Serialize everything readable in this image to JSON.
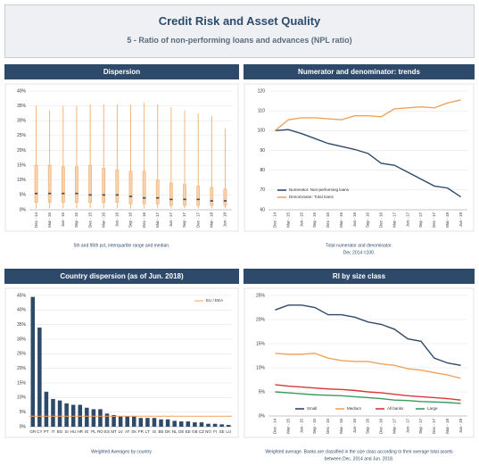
{
  "header": {
    "title": "Credit Risk and Asset Quality",
    "subtitle": "5 - Ratio of non-performing loans and advances (NPL ratio)"
  },
  "chart_data": [
    {
      "type": "box",
      "title": "Dispersion",
      "caption": [
        "5th and 95th pct, interquartile range and median."
      ],
      "categories": [
        "Dec - 14",
        "Mar - 15",
        "Jun - 15",
        "Sep - 15",
        "Dec - 15",
        "Mar - 16",
        "Jun - 16",
        "Sep - 16",
        "Dec - 16",
        "Mar - 17",
        "Jun - 17",
        "Sep - 17",
        "Dec - 17",
        "Mar - 18",
        "Jun - 18"
      ],
      "low": [
        0.5,
        0.5,
        0.5,
        0.5,
        0.5,
        0.5,
        0.5,
        0.5,
        0.5,
        0.5,
        0.5,
        0.5,
        0.5,
        0.5,
        0.5
      ],
      "q1": [
        2.5,
        2.5,
        2.5,
        2.5,
        2.5,
        2.5,
        2.5,
        2,
        2,
        2,
        1.5,
        1.5,
        1.5,
        1.5,
        1.5
      ],
      "median": [
        5.5,
        5.5,
        5.5,
        5.5,
        5,
        5,
        5,
        4.5,
        4,
        4,
        3.5,
        3.5,
        3.5,
        3,
        3
      ],
      "q3": [
        15,
        15,
        14.5,
        14.5,
        15,
        14,
        13.5,
        13,
        13,
        10,
        9,
        8.5,
        8,
        7.5,
        7
      ],
      "high": [
        35,
        33.5,
        35,
        35,
        35.5,
        35.5,
        35.5,
        35.5,
        36,
        35.5,
        34.5,
        33.5,
        32.5,
        31.5,
        27.5
      ],
      "color": "#f0a35a",
      "median_color": "#2e4a6b",
      "ylim": [
        0,
        40
      ],
      "yticks": [
        {
          "value": 0,
          "label": "0%"
        },
        {
          "value": 5,
          "label": "5%"
        },
        {
          "value": 10,
          "label": "10%"
        },
        {
          "value": 15,
          "label": "15%"
        },
        {
          "value": 20,
          "label": "20%"
        },
        {
          "value": 25,
          "label": "25%"
        },
        {
          "value": 30,
          "label": "30%"
        },
        {
          "value": 35,
          "label": "35%"
        },
        {
          "value": 40,
          "label": "40%"
        }
      ],
      "grid": true
    },
    {
      "type": "line",
      "title": "Numerator and denominator: trends",
      "caption": [
        "Total numerator and denominator.",
        "Dec 2014 =100."
      ],
      "categories": [
        "Dec - 14",
        "Mar - 15",
        "Jun - 15",
        "Sep - 15",
        "Dec - 15",
        "Mar - 16",
        "Jun - 16",
        "Sep - 16",
        "Dec - 16",
        "Mar - 17",
        "Jun - 17",
        "Sep - 17",
        "Dec - 17",
        "Mar - 18",
        "Jun - 18"
      ],
      "series": [
        {
          "name": "Numerator: Non-performing loans",
          "color": "#2e4a6b",
          "values": [
            100,
            100.5,
            98.5,
            96,
            93.5,
            92,
            90.5,
            88.5,
            83.5,
            82.5,
            79,
            75.5,
            72,
            71,
            66.5
          ]
        },
        {
          "name": "Denominator: Total loans",
          "color": "#f0a35a",
          "values": [
            100,
            105.5,
            106.5,
            106.5,
            106,
            105.5,
            107.5,
            107.5,
            107,
            111,
            111.5,
            112,
            111.5,
            114,
            115.5
          ]
        }
      ],
      "ylim": [
        60,
        120
      ],
      "yticks": [
        60,
        70,
        80,
        90,
        100,
        110,
        120
      ],
      "grid": true,
      "legend": "lower left"
    },
    {
      "type": "bar",
      "title": "Country dispersion (as of Jun. 2018)",
      "caption": [
        "Weighted Averages by country."
      ],
      "categories": [
        "GR",
        "CY",
        "PT",
        "IT",
        "BG",
        "SI",
        "HU",
        "HR",
        "IE",
        "PL",
        "RO",
        "ES",
        "MT",
        "LV",
        "AT",
        "SK",
        "FR",
        "LT",
        "IS",
        "BE",
        "DK",
        "NL",
        "DE",
        "EE",
        "GB",
        "CZ",
        "NO",
        "FI",
        "SE",
        "LU"
      ],
      "values": [
        44.5,
        34,
        12,
        9.5,
        9,
        8,
        7.5,
        7.5,
        6.5,
        6,
        6,
        4.5,
        4,
        3.5,
        3.5,
        3.5,
        3,
        3,
        3,
        2.5,
        2.5,
        2,
        1.8,
        1.8,
        1.5,
        1.5,
        1,
        1,
        0.8,
        0.6
      ],
      "color": "#2e4a6b",
      "reference_line": {
        "name": "EU / EEA",
        "value": 3.6,
        "color": "#f0a35a"
      },
      "ylim": [
        0,
        45
      ],
      "yticks": [
        {
          "value": 0,
          "label": "0%"
        },
        {
          "value": 5,
          "label": "5%"
        },
        {
          "value": 10,
          "label": "10%"
        },
        {
          "value": 15,
          "label": "15%"
        },
        {
          "value": 20,
          "label": "20%"
        },
        {
          "value": 25,
          "label": "25%"
        },
        {
          "value": 30,
          "label": "30%"
        },
        {
          "value": 35,
          "label": "35%"
        },
        {
          "value": 40,
          "label": "40%"
        },
        {
          "value": 45,
          "label": "45%"
        }
      ],
      "grid": true,
      "legend": "upper right"
    },
    {
      "type": "line",
      "title": "RI by size class",
      "caption": [
        "Weighted average. Banks are classified in the size class according to their average total assets",
        "between Dec. 2014 and Jun. 2018."
      ],
      "categories": [
        "Dec - 14",
        "Mar - 15",
        "Jun - 15",
        "Sep - 15",
        "Dec - 15",
        "Mar - 16",
        "Jun - 16",
        "Sep - 16",
        "Dec - 16",
        "Mar - 17",
        "Jun - 17",
        "Sep - 17",
        "Dec - 17",
        "Mar - 18",
        "Jun - 18"
      ],
      "series": [
        {
          "name": "Small",
          "color": "#2e4a6b",
          "values": [
            22,
            23,
            23,
            22.5,
            21,
            21,
            20.5,
            19.5,
            19,
            18,
            16,
            15.5,
            12,
            11,
            10.5
          ]
        },
        {
          "name": "Medium",
          "color": "#f0a35a",
          "values": [
            13,
            12.8,
            12.8,
            13,
            12,
            11.5,
            11.3,
            11.3,
            10.8,
            10.5,
            9.8,
            9.5,
            9,
            8.5,
            7.8
          ]
        },
        {
          "name": "All banks",
          "color": "#d9383a",
          "values": [
            6.5,
            6.2,
            6,
            5.8,
            5.6,
            5.5,
            5.3,
            5,
            4.8,
            4.5,
            4.2,
            4,
            3.8,
            3.6,
            3.3
          ]
        },
        {
          "name": "Large",
          "color": "#3a9a5b",
          "values": [
            5,
            4.8,
            4.6,
            4.4,
            4.3,
            4.2,
            4,
            3.8,
            3.6,
            3.3,
            3.2,
            3,
            2.9,
            2.8,
            2.6
          ]
        }
      ],
      "ylim": [
        0,
        25
      ],
      "yticks": [
        {
          "value": 0,
          "label": "0%"
        },
        {
          "value": 5,
          "label": "5%"
        },
        {
          "value": 10,
          "label": "10%"
        },
        {
          "value": 15,
          "label": "15%"
        },
        {
          "value": 20,
          "label": "20%"
        },
        {
          "value": 25,
          "label": "25%"
        }
      ],
      "grid": true,
      "legend": "lower center"
    }
  ]
}
